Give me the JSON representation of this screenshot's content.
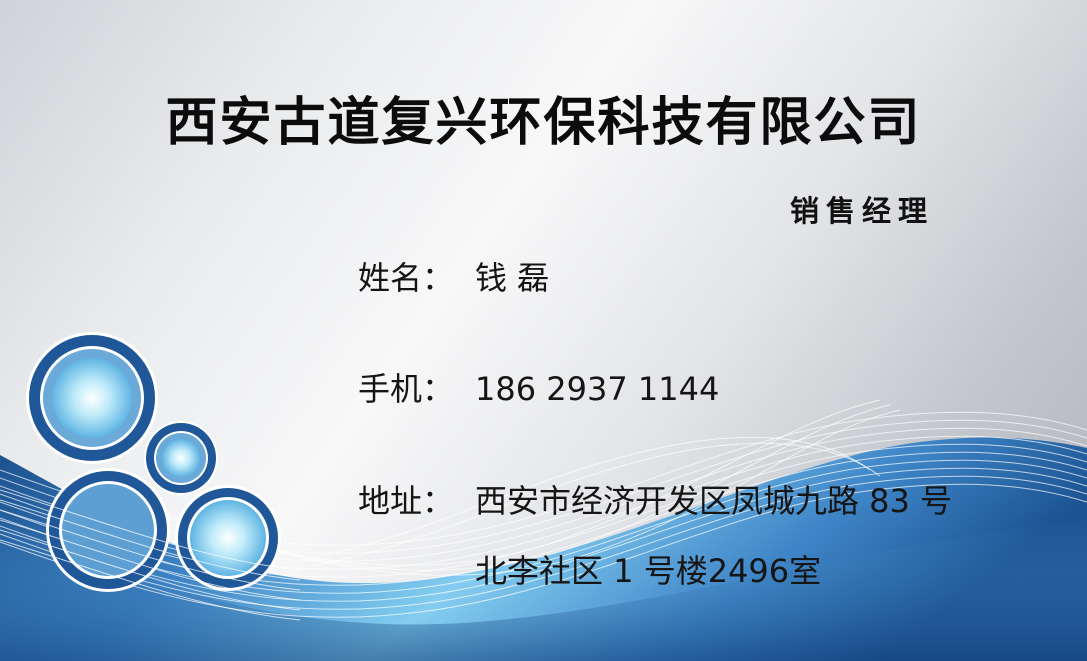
{
  "card": {
    "company": "西安古道复兴环保科技有限公司",
    "job_title": "销售经理",
    "name_label": "姓名：",
    "name_value": "钱 磊",
    "phone_label": "手机：",
    "phone_value": "186 2937 1144",
    "address_label": "地址：",
    "address_line1": "西安市经济开发区凤城九路 83 号",
    "address_line2": "北李社区 1 号楼2496室"
  },
  "colors": {
    "wave_dark": "#1d5594",
    "wave_mid": "#3f86c8",
    "wave_light": "#8fd2f2",
    "circle_ring": "#1e5596",
    "circle_glow": "#a8e4f7"
  }
}
